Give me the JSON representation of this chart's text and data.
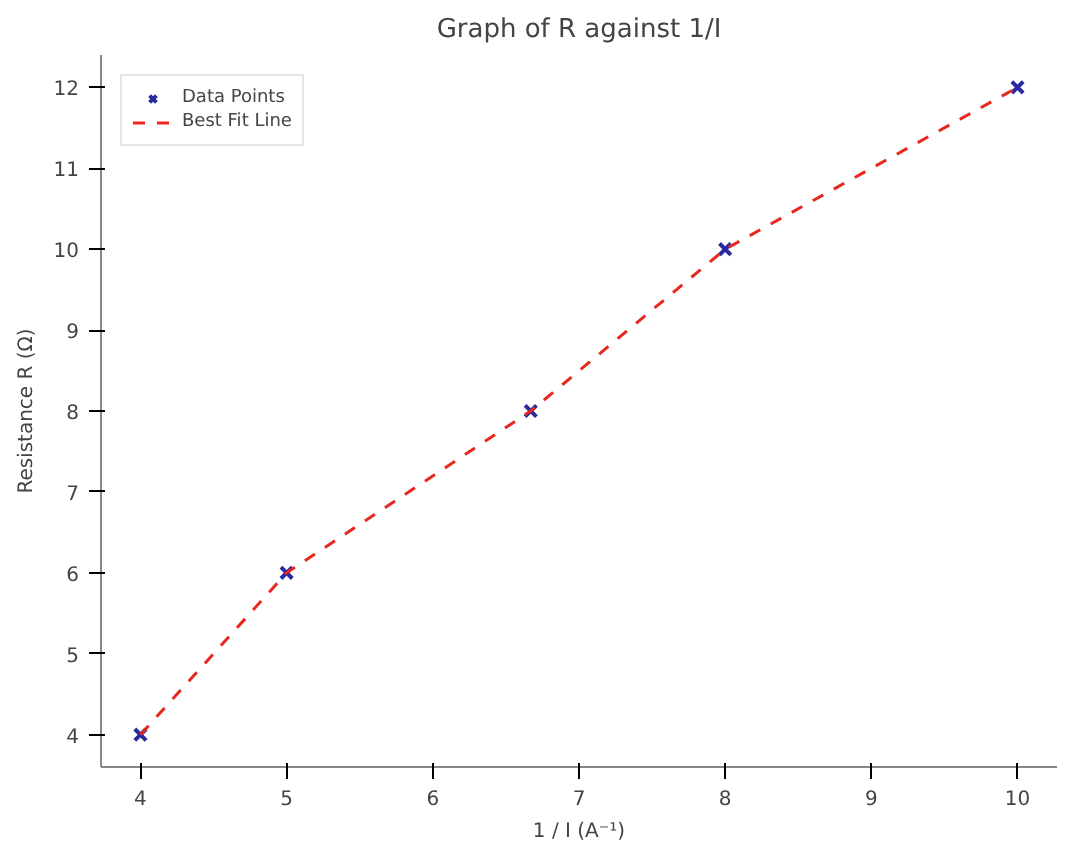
{
  "chart_data": {
    "type": "scatter",
    "title": "Graph of R against 1/I",
    "xlabel": "1 / I (A⁻¹)",
    "ylabel": "Resistance R (Ω)",
    "x": [
      4,
      5,
      6.67,
      8,
      10
    ],
    "series": [
      {
        "name": "Data Points",
        "color": "#2a2aa0",
        "values": [
          4,
          6,
          8,
          10,
          12
        ],
        "marker": "cross"
      },
      {
        "name": "Best Fit Line",
        "type": "line",
        "color": "#e8281e",
        "x": [
          4,
          5,
          6.67,
          8,
          10
        ],
        "values": [
          4,
          6,
          8,
          10,
          12
        ],
        "line_style": "dashed",
        "marker": "none"
      }
    ],
    "xlim": [
      3.73,
      10.27
    ],
    "ylim": [
      3.6,
      12.4
    ],
    "xticks": [
      4,
      5,
      6,
      7,
      8,
      9,
      10
    ],
    "yticks": [
      4,
      5,
      6,
      7,
      8,
      9,
      10,
      11,
      12
    ],
    "grid": false,
    "legend": "top left"
  }
}
